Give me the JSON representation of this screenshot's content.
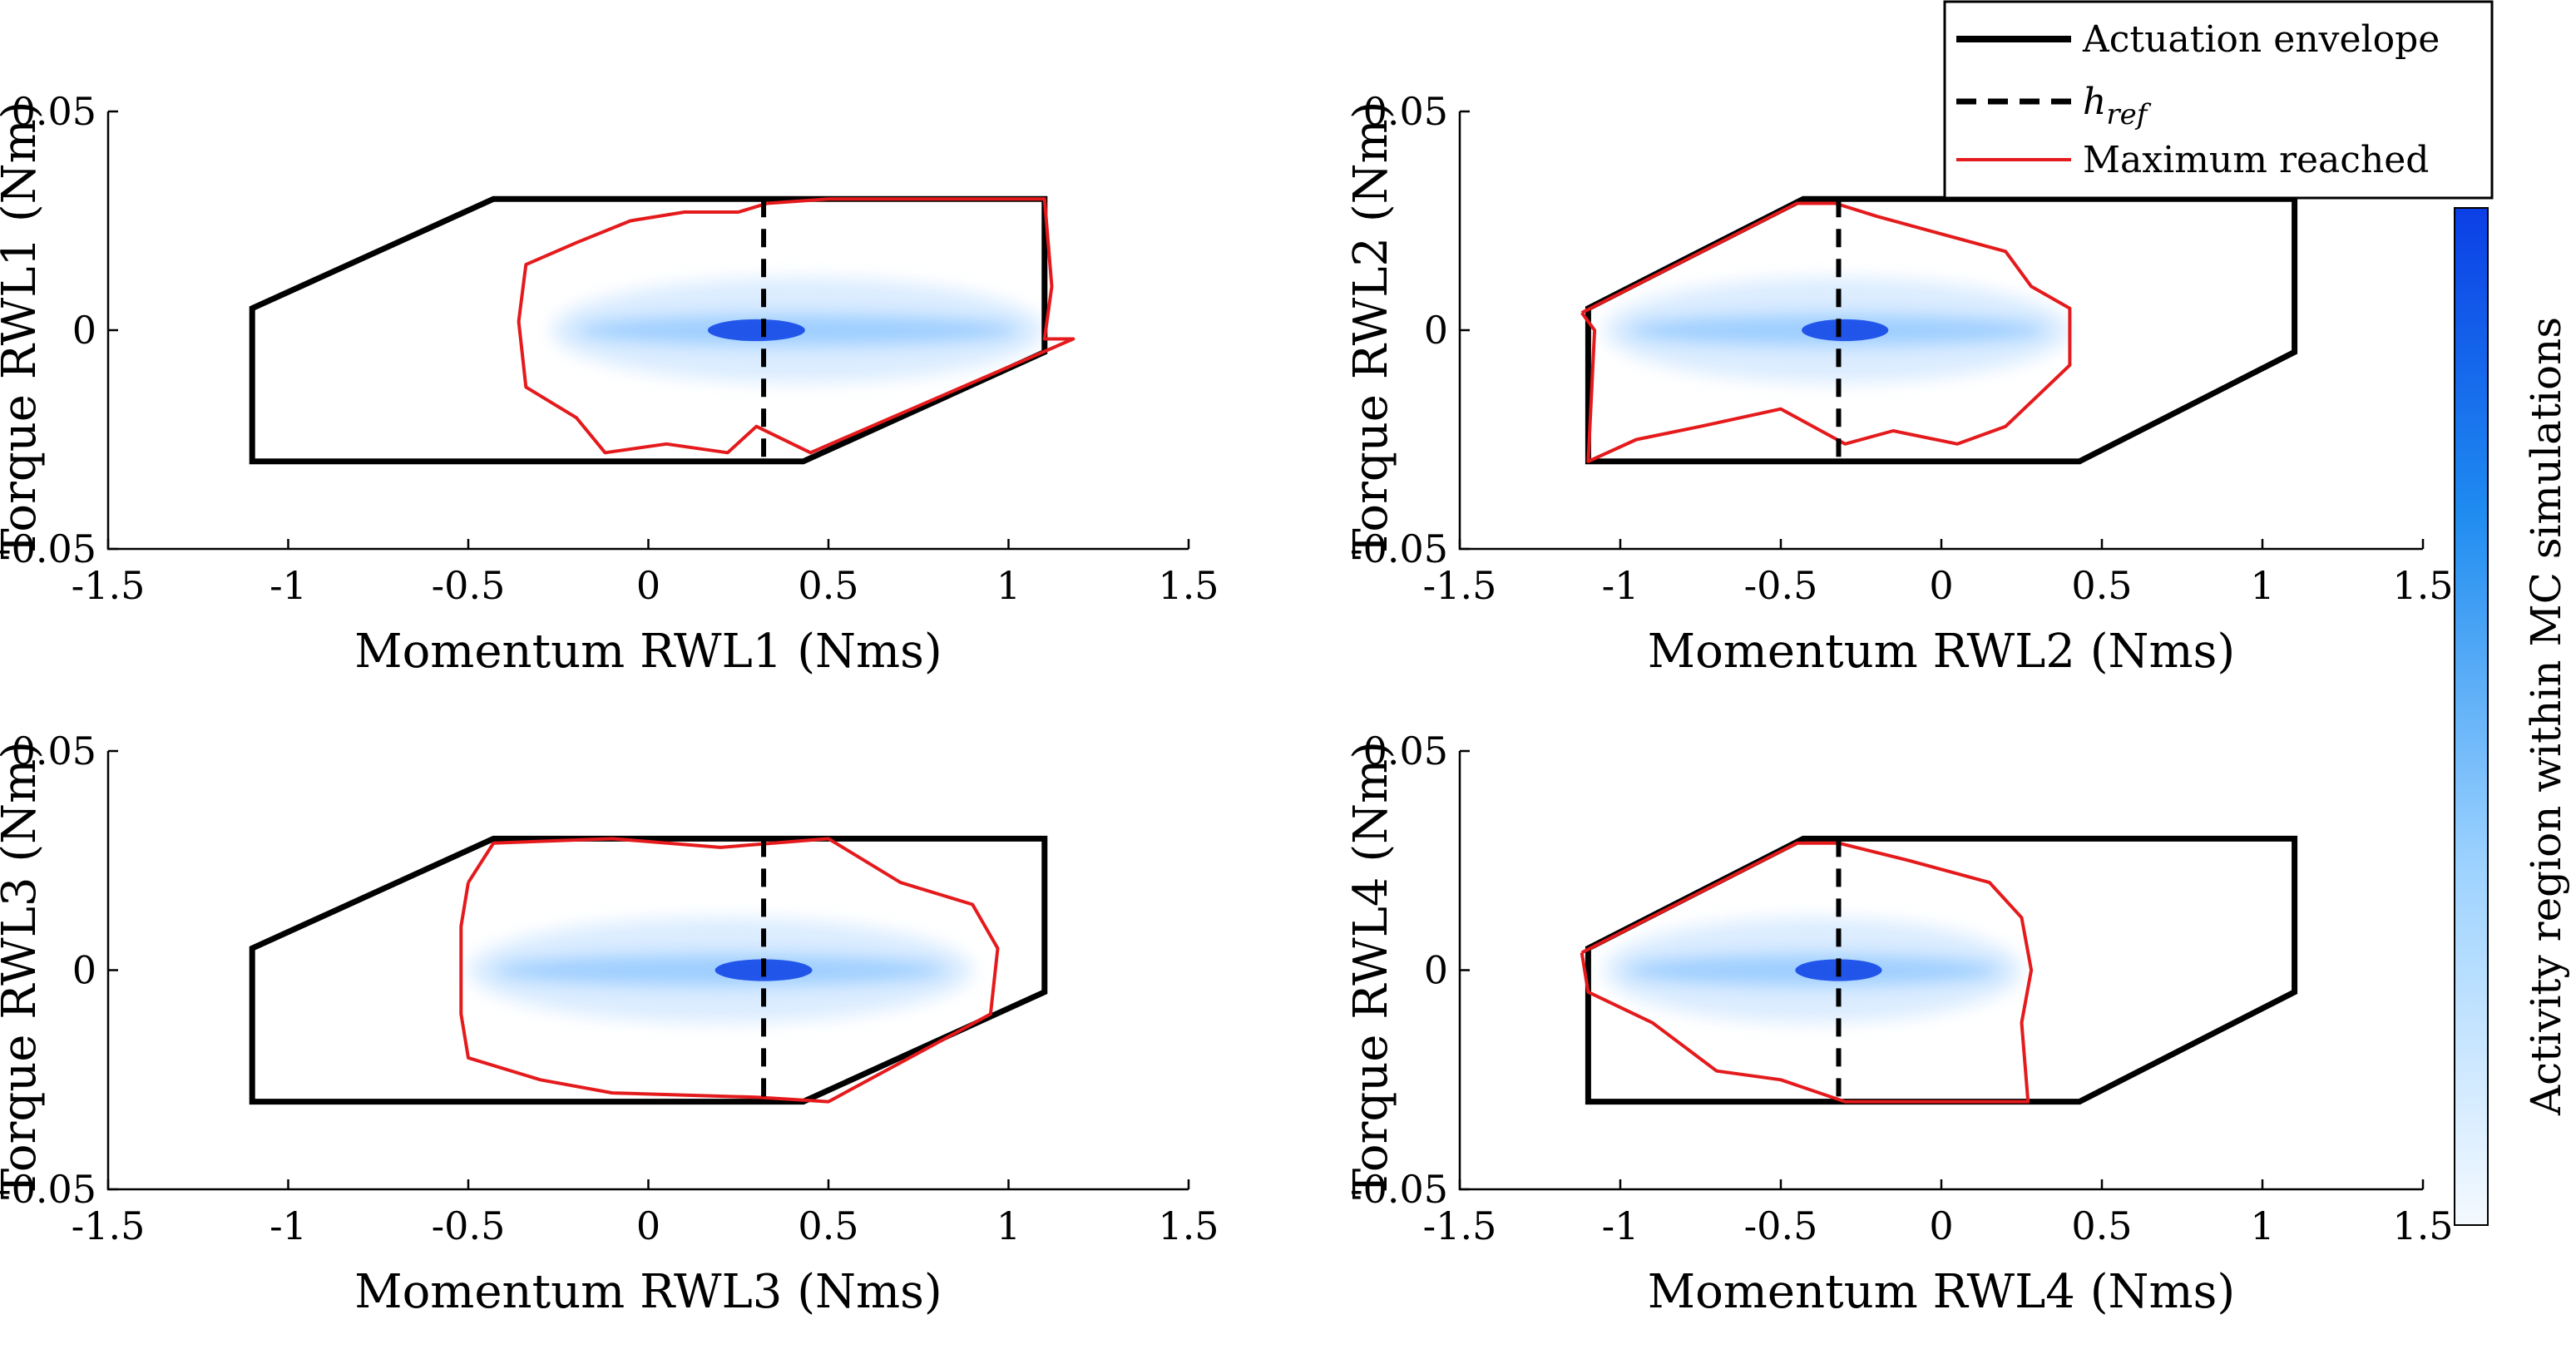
{
  "legend": {
    "entries": [
      {
        "label": "Actuation envelope",
        "style": "solid",
        "color": "#000000"
      },
      {
        "label": "h",
        "sub": "ref",
        "style": "dashed",
        "color": "#000000"
      },
      {
        "label": "Maximum reached",
        "style": "solid",
        "color": "#e41a1c"
      }
    ]
  },
  "colorbar": {
    "label": "Activity region within MC simulations",
    "color_low": "#f4f9ff",
    "color_high": "#0b3fe6"
  },
  "chart_data": [
    {
      "type": "scatter",
      "panel": "RWL1",
      "xlabel": "Momentum RWL1 (Nms)",
      "ylabel": "Torque RWL1 (Nm)",
      "xlim": [
        -1.5,
        1.5
      ],
      "ylim": [
        -0.05,
        0.05
      ],
      "xticks": [
        "-1.5",
        "-1",
        "-0.5",
        "0",
        "0.5",
        "1",
        "1.5"
      ],
      "yticks": [
        "-0.05",
        "0",
        "0.05"
      ],
      "h_ref": 0.32,
      "envelope": [
        [
          -1.1,
          0.005
        ],
        [
          -0.43,
          0.03
        ],
        [
          1.1,
          0.03
        ],
        [
          1.1,
          -0.005
        ],
        [
          0.43,
          -0.03
        ],
        [
          -1.1,
          -0.03
        ]
      ],
      "max_reached": [
        [
          0.33,
          0.029
        ],
        [
          0.5,
          0.03
        ],
        [
          1.1,
          0.03
        ],
        [
          1.12,
          0.01
        ],
        [
          1.1,
          -0.002
        ],
        [
          1.18,
          -0.002
        ],
        [
          0.45,
          -0.028
        ],
        [
          0.3,
          -0.022
        ],
        [
          0.22,
          -0.028
        ],
        [
          0.05,
          -0.026
        ],
        [
          -0.12,
          -0.028
        ],
        [
          -0.2,
          -0.02
        ],
        [
          -0.34,
          -0.013
        ],
        [
          -0.36,
          0.002
        ],
        [
          -0.34,
          0.015
        ],
        [
          -0.2,
          0.02
        ],
        [
          -0.05,
          0.025
        ],
        [
          0.1,
          0.027
        ],
        [
          0.25,
          0.027
        ],
        [
          0.33,
          0.029
        ]
      ],
      "activity_centroid": [
        0.3,
        0.0
      ],
      "activity_xrange": [
        -0.27,
        1.1
      ]
    },
    {
      "type": "scatter",
      "panel": "RWL2",
      "xlabel": "Momentum RWL2 (Nms)",
      "ylabel": "Torque RWL2 (Nm)",
      "xlim": [
        -1.5,
        1.5
      ],
      "ylim": [
        -0.05,
        0.05
      ],
      "xticks": [
        "-1.5",
        "-1",
        "-0.5",
        "0",
        "0.5",
        "1",
        "1.5"
      ],
      "yticks": [
        "-0.05",
        "0",
        "0.05"
      ],
      "h_ref": -0.32,
      "envelope": [
        [
          -1.1,
          0.005
        ],
        [
          -0.43,
          0.03
        ],
        [
          1.1,
          0.03
        ],
        [
          1.1,
          -0.005
        ],
        [
          0.43,
          -0.03
        ],
        [
          -1.1,
          -0.03
        ]
      ],
      "max_reached": [
        [
          -1.12,
          0.004
        ],
        [
          -0.45,
          0.029
        ],
        [
          -0.33,
          0.029
        ],
        [
          -0.2,
          0.026
        ],
        [
          0.0,
          0.022
        ],
        [
          0.2,
          0.018
        ],
        [
          0.28,
          0.01
        ],
        [
          0.4,
          0.005
        ],
        [
          0.4,
          -0.008
        ],
        [
          0.3,
          -0.015
        ],
        [
          0.2,
          -0.022
        ],
        [
          0.05,
          -0.026
        ],
        [
          -0.15,
          -0.023
        ],
        [
          -0.3,
          -0.026
        ],
        [
          -0.5,
          -0.018
        ],
        [
          -0.75,
          -0.022
        ],
        [
          -0.95,
          -0.025
        ],
        [
          -1.1,
          -0.03
        ],
        [
          -1.08,
          0.0
        ],
        [
          -1.12,
          0.004
        ]
      ],
      "activity_centroid": [
        -0.3,
        0.0
      ],
      "activity_xrange": [
        -1.05,
        0.4
      ]
    },
    {
      "type": "scatter",
      "panel": "RWL3",
      "xlabel": "Momentum RWL3 (Nms)",
      "ylabel": "Torque RWL3 (Nm)",
      "xlim": [
        -1.5,
        1.5
      ],
      "ylim": [
        -0.05,
        0.05
      ],
      "xticks": [
        "-1.5",
        "-1",
        "-0.5",
        "0",
        "0.5",
        "1",
        "1.5"
      ],
      "yticks": [
        "-0.05",
        "0",
        "0.05"
      ],
      "h_ref": 0.32,
      "envelope": [
        [
          -1.1,
          0.005
        ],
        [
          -0.43,
          0.03
        ],
        [
          1.1,
          0.03
        ],
        [
          1.1,
          -0.005
        ],
        [
          0.43,
          -0.03
        ],
        [
          -1.1,
          -0.03
        ]
      ],
      "max_reached": [
        [
          -0.5,
          0.02
        ],
        [
          -0.43,
          0.029
        ],
        [
          -0.1,
          0.03
        ],
        [
          0.2,
          0.028
        ],
        [
          0.5,
          0.03
        ],
        [
          0.7,
          0.02
        ],
        [
          0.9,
          0.015
        ],
        [
          0.97,
          0.005
        ],
        [
          0.95,
          -0.01
        ],
        [
          0.5,
          -0.03
        ],
        [
          0.3,
          -0.029
        ],
        [
          -0.1,
          -0.028
        ],
        [
          -0.3,
          -0.025
        ],
        [
          -0.5,
          -0.02
        ],
        [
          -0.52,
          -0.01
        ],
        [
          -0.52,
          0.01
        ],
        [
          -0.5,
          0.02
        ]
      ],
      "activity_centroid": [
        0.32,
        0.0
      ],
      "activity_xrange": [
        -0.5,
        0.9
      ]
    },
    {
      "type": "scatter",
      "panel": "RWL4",
      "xlabel": "Momentum RWL4 (Nms)",
      "ylabel": "Torque RWL4 (Nm)",
      "xlim": [
        -1.5,
        1.5
      ],
      "ylim": [
        -0.05,
        0.05
      ],
      "xticks": [
        "-1.5",
        "-1",
        "-0.5",
        "0",
        "0.5",
        "1",
        "1.5"
      ],
      "yticks": [
        "-0.05",
        "0",
        "0.05"
      ],
      "h_ref": -0.32,
      "envelope": [
        [
          -1.1,
          0.005
        ],
        [
          -0.43,
          0.03
        ],
        [
          1.1,
          0.03
        ],
        [
          1.1,
          -0.005
        ],
        [
          0.43,
          -0.03
        ],
        [
          -1.1,
          -0.03
        ]
      ],
      "max_reached": [
        [
          -1.12,
          0.004
        ],
        [
          -0.45,
          0.029
        ],
        [
          -0.32,
          0.029
        ],
        [
          -0.1,
          0.025
        ],
        [
          0.15,
          0.02
        ],
        [
          0.25,
          0.012
        ],
        [
          0.28,
          0.0
        ],
        [
          0.25,
          -0.012
        ],
        [
          0.27,
          -0.03
        ],
        [
          0.0,
          -0.03
        ],
        [
          -0.3,
          -0.03
        ],
        [
          -0.5,
          -0.025
        ],
        [
          -0.7,
          -0.023
        ],
        [
          -0.9,
          -0.012
        ],
        [
          -1.1,
          -0.005
        ],
        [
          -1.12,
          0.004
        ]
      ],
      "activity_centroid": [
        -0.32,
        0.0
      ],
      "activity_xrange": [
        -1.05,
        0.25
      ]
    }
  ]
}
